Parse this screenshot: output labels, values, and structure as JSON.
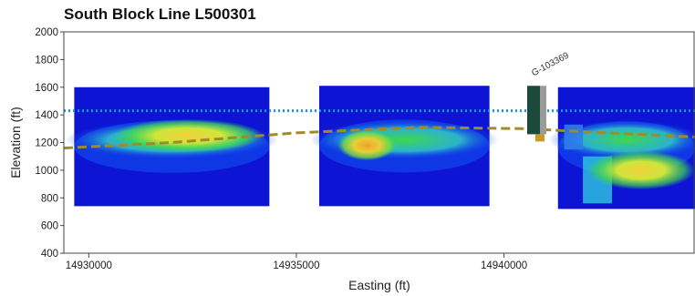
{
  "chart_data": {
    "type": "heatmap",
    "title": "South Block Line L500301",
    "xlabel": "Easting (ft)",
    "ylabel": "Elevation (ft)",
    "xlim": [
      14929400,
      14944600
    ],
    "ylim": [
      400,
      2000
    ],
    "x_ticks": [
      14930000,
      14935000,
      14940000
    ],
    "x_tick_labels": [
      "14930000",
      "14935000",
      "14940000"
    ],
    "y_ticks": [
      400,
      600,
      800,
      1000,
      1200,
      1400,
      1600,
      1800,
      2000
    ],
    "y_tick_labels": [
      "400",
      "600",
      "800",
      "1000",
      "1200",
      "1400",
      "1600",
      "1800",
      "2000"
    ],
    "grid": false,
    "sections": [
      {
        "x_start": 14929650,
        "x_end": 14934350,
        "top": 1600,
        "bottom": 740
      },
      {
        "x_start": 14935550,
        "x_end": 14939650,
        "top": 1610,
        "bottom": 740
      },
      {
        "x_start": 14941300,
        "x_end": 14944600,
        "top": 1600,
        "bottom": 720
      }
    ],
    "hotspots": [
      {
        "x": 14932400,
        "y": 1250,
        "rx": 1800,
        "ry": 120,
        "level": "yellow"
      },
      {
        "x": 14936700,
        "y": 1180,
        "rx": 700,
        "ry": 110,
        "level": "orange"
      },
      {
        "x": 14943300,
        "y": 1000,
        "rx": 1300,
        "ry": 140,
        "level": "yellow"
      }
    ],
    "dotted_line": {
      "elevation": 1430,
      "color": "#1f8fd6"
    },
    "dashed_line": {
      "color": "#a08a2a",
      "points": [
        [
          14929400,
          1160
        ],
        [
          14932000,
          1200
        ],
        [
          14935000,
          1270
        ],
        [
          14938000,
          1310
        ],
        [
          14940500,
          1300
        ],
        [
          14942500,
          1270
        ],
        [
          14944600,
          1240
        ]
      ]
    },
    "well": {
      "label": "G-103369",
      "x": 14940800
    },
    "colors": {
      "background": "#0d14d4",
      "low": "#1040e8",
      "mid": "#2ec8e0",
      "green": "#3fd84a",
      "yellow": "#d9e83a",
      "orange": "#f2a12a"
    }
  }
}
